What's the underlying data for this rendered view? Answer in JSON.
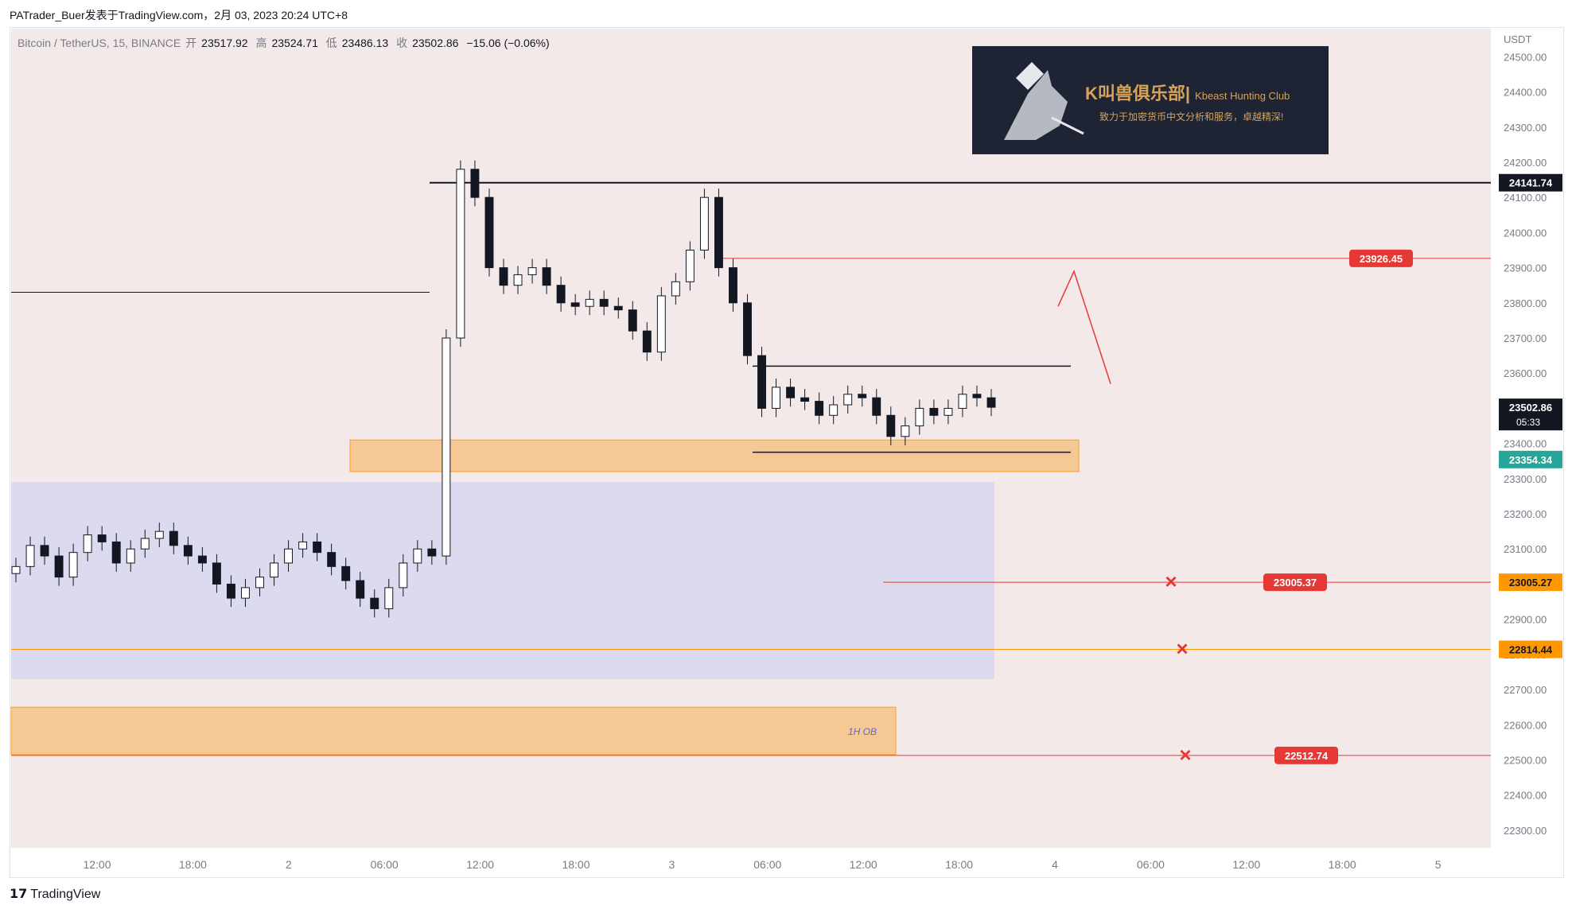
{
  "header": {
    "attribution": "PATrader_Buer发表于TradingView.com，2月 03, 2023 20:24 UTC+8"
  },
  "symbol": {
    "name": "Bitcoin / TetherUS, 15, BINANCE",
    "open_label": "开",
    "open": "23517.92",
    "high_label": "高",
    "high": "23524.71",
    "low_label": "低",
    "low": "23486.13",
    "close_label": "收",
    "close": "23502.86",
    "change": "−15.06 (−0.06%)"
  },
  "logo": {
    "title": "K叫兽俱乐部|",
    "subtitle": "Kbeast Hunting Club",
    "tagline": "致力于加密货币中文分析和服务，卓越精深!"
  },
  "footer": {
    "brand": "TradingView"
  },
  "colors": {
    "up": "#ffffff",
    "down": "#131722",
    "red": "#e53935",
    "orange": "#ff9800",
    "orange_zone": "#f7c58c",
    "purple_zone": "#d9d8ee",
    "teal": "#26a69a",
    "bg": "#f3e9e9"
  },
  "chart_data": {
    "type": "candlestick",
    "ylabel": "USDT",
    "ylim": [
      22250,
      24580
    ],
    "y_ticks": [
      24500,
      24400,
      24300,
      24200,
      24100,
      24000,
      23900,
      23800,
      23700,
      23600,
      23500,
      23400,
      23300,
      23200,
      23100,
      23000,
      22900,
      22800,
      22700,
      22600,
      22500,
      22400,
      22300
    ],
    "x_ticks": [
      "12:00",
      "18:00",
      "2",
      "06:00",
      "12:00",
      "18:00",
      "3",
      "06:00",
      "12:00",
      "18:00",
      "4",
      "06:00",
      "12:00",
      "18:00",
      "5"
    ],
    "price_labels": [
      {
        "value": 24141.74,
        "text": "24141.74",
        "style": "black"
      },
      {
        "value": 23926.45,
        "text": "23926.45",
        "style": "red"
      },
      {
        "value": 23502.86,
        "text": "23502.86",
        "style": "dark",
        "countdown": "05:33"
      },
      {
        "value": 23354.34,
        "text": "23354.34",
        "style": "green"
      },
      {
        "value": 23005.37,
        "text": "23005.37",
        "style": "red"
      },
      {
        "value": 23005.27,
        "text": "23005.27",
        "style": "orange"
      },
      {
        "value": 22814.44,
        "text": "22814.44",
        "style": "orange"
      },
      {
        "value": 22512.74,
        "text": "22512.74",
        "style": "red"
      }
    ],
    "zones": [
      {
        "label": "",
        "from": 23320,
        "to": 23410,
        "color": "orange"
      },
      {
        "label": "",
        "from": 22730,
        "to": 23290,
        "color": "purple"
      },
      {
        "label": "1H OB",
        "from": 22515,
        "to": 22650,
        "color": "orange"
      }
    ],
    "key_levels": [
      24141.74,
      23830,
      23620,
      23375,
      23926.45,
      23005.37,
      22814.44,
      22512.74
    ],
    "closes": [
      23050,
      23110,
      23080,
      23020,
      23090,
      23140,
      23120,
      23060,
      23100,
      23130,
      23150,
      23110,
      23080,
      23060,
      23000,
      22960,
      22990,
      23020,
      23060,
      23100,
      23120,
      23090,
      23050,
      23010,
      22960,
      22930,
      22990,
      23060,
      23100,
      23080,
      23700,
      24180,
      24100,
      23900,
      23850,
      23880,
      23900,
      23850,
      23800,
      23790,
      23810,
      23790,
      23780,
      23720,
      23660,
      23820,
      23860,
      23950,
      24100,
      23900,
      23800,
      23650,
      23500,
      23560,
      23530,
      23520,
      23480,
      23510,
      23540,
      23530,
      23480,
      23420,
      23450,
      23500,
      23480,
      23500,
      23540,
      23530,
      23503
    ],
    "markers": [
      "×",
      "×",
      "×"
    ]
  }
}
